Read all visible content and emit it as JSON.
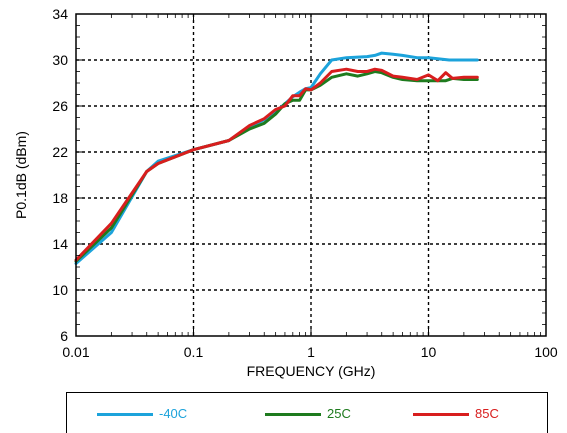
{
  "chart_data": {
    "type": "line",
    "xscale": "log",
    "xlim": [
      0.01,
      100
    ],
    "ylim": [
      6,
      34
    ],
    "xticks": [
      0.01,
      0.1,
      1,
      10,
      100
    ],
    "xtick_labels": [
      "0.01",
      "0.1",
      "1",
      "10",
      "100"
    ],
    "yticks": [
      6,
      10,
      14,
      18,
      22,
      26,
      30,
      34
    ],
    "ytick_labels": [
      "6",
      "10",
      "14",
      "18",
      "22",
      "26",
      "30",
      "34"
    ],
    "xlabel": "FREQUENCY (GHz)",
    "ylabel": "P0.1dB (dBm)",
    "title": "",
    "grid": true,
    "legend_position": "bottom",
    "series": [
      {
        "name": "-40C",
        "color": "#1CA3DB",
        "x": [
          0.01,
          0.02,
          0.04,
          0.05,
          0.1,
          0.2,
          0.3,
          0.4,
          0.5,
          0.6,
          0.7,
          0.8,
          0.9,
          1.0,
          1.2,
          1.5,
          2,
          3,
          3.5,
          4,
          5,
          6,
          8,
          10,
          15,
          20,
          26
        ],
        "y": [
          12.3,
          15.0,
          20.3,
          21.2,
          22.2,
          23.0,
          24.2,
          24.8,
          25.5,
          26.2,
          26.8,
          27.2,
          27.5,
          27.6,
          28.8,
          30.0,
          30.2,
          30.3,
          30.4,
          30.6,
          30.5,
          30.4,
          30.2,
          30.2,
          30.0,
          30.0,
          30.0
        ]
      },
      {
        "name": "25C",
        "color": "#1E7B1E",
        "x": [
          0.01,
          0.02,
          0.04,
          0.05,
          0.1,
          0.2,
          0.3,
          0.4,
          0.5,
          0.6,
          0.7,
          0.8,
          0.9,
          1.0,
          1.2,
          1.5,
          2,
          2.5,
          3,
          3.5,
          4,
          5,
          6,
          8,
          10,
          12,
          14,
          16,
          20,
          26
        ],
        "y": [
          12.5,
          15.4,
          20.3,
          21.0,
          22.2,
          23.0,
          24.0,
          24.5,
          25.3,
          26.2,
          26.5,
          26.5,
          27.4,
          27.4,
          27.8,
          28.5,
          28.8,
          28.6,
          28.8,
          29.0,
          28.9,
          28.5,
          28.3,
          28.2,
          28.2,
          28.2,
          28.2,
          28.4,
          28.3,
          28.3
        ]
      },
      {
        "name": "85C",
        "color": "#D81E1E",
        "x": [
          0.01,
          0.02,
          0.04,
          0.05,
          0.1,
          0.2,
          0.3,
          0.4,
          0.5,
          0.6,
          0.7,
          0.8,
          0.9,
          1.0,
          1.2,
          1.5,
          2,
          2.5,
          3,
          3.5,
          4,
          5,
          6,
          8,
          10,
          12,
          14,
          16,
          20,
          26
        ],
        "y": [
          12.6,
          15.8,
          20.3,
          21.0,
          22.2,
          23.0,
          24.3,
          24.9,
          25.7,
          26.0,
          26.9,
          26.9,
          27.5,
          27.4,
          28.0,
          29.0,
          29.2,
          29.0,
          29.0,
          29.2,
          29.1,
          28.6,
          28.5,
          28.3,
          28.7,
          28.2,
          28.9,
          28.4,
          28.5,
          28.5
        ]
      }
    ]
  }
}
